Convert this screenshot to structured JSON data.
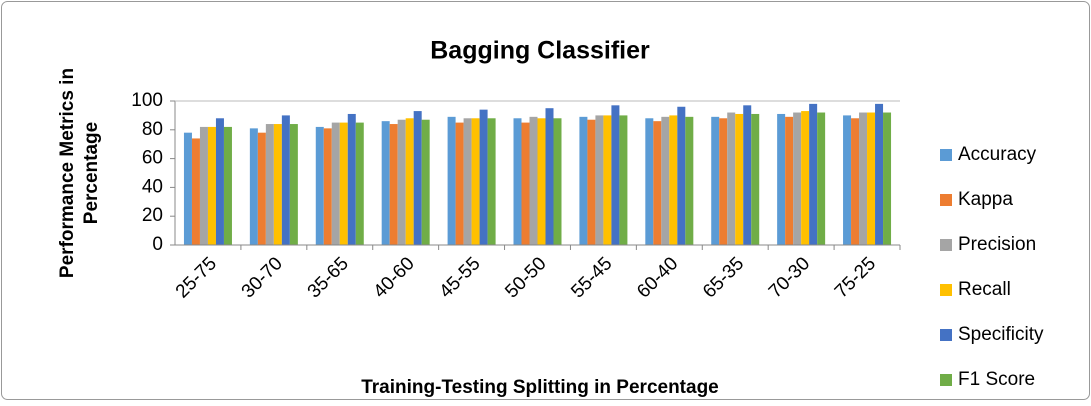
{
  "chart_data": {
    "type": "bar",
    "title": "Bagging Classifier",
    "xlabel": "Training-Testing Splitting in Percentage",
    "ylabel": [
      "Performance Metrics in",
      "Percentage"
    ],
    "categories": [
      "25-75",
      "30-70",
      "35-65",
      "40-60",
      "45-55",
      "50-50",
      "55-45",
      "60-40",
      "65-35",
      "70-30",
      "75-25"
    ],
    "series": [
      {
        "name": "Accuracy",
        "color": "#5b9bd5",
        "values": [
          78,
          81,
          82,
          86,
          89,
          88,
          89,
          88,
          89,
          91,
          90
        ]
      },
      {
        "name": "Kappa",
        "color": "#ed7d31",
        "values": [
          74,
          78,
          81,
          84,
          85,
          85,
          87,
          86,
          88,
          89,
          88
        ]
      },
      {
        "name": "Precision",
        "color": "#a5a5a5",
        "values": [
          82,
          84,
          85,
          87,
          88,
          89,
          90,
          89,
          92,
          92,
          92
        ]
      },
      {
        "name": "Recall",
        "color": "#ffc000",
        "values": [
          82,
          84,
          85,
          88,
          88,
          88,
          90,
          90,
          91,
          93,
          92
        ]
      },
      {
        "name": "Specificity",
        "color": "#4472c4",
        "values": [
          88,
          90,
          91,
          93,
          94,
          95,
          97,
          96,
          97,
          98,
          98
        ]
      },
      {
        "name": "F1 Score",
        "color": "#70ad47",
        "values": [
          82,
          84,
          85,
          87,
          88,
          88,
          90,
          89,
          91,
          92,
          92
        ]
      }
    ],
    "ylim": [
      0,
      100
    ],
    "yticks": [
      0,
      20,
      40,
      60,
      80,
      100
    ],
    "grid": false,
    "legend": "right"
  }
}
